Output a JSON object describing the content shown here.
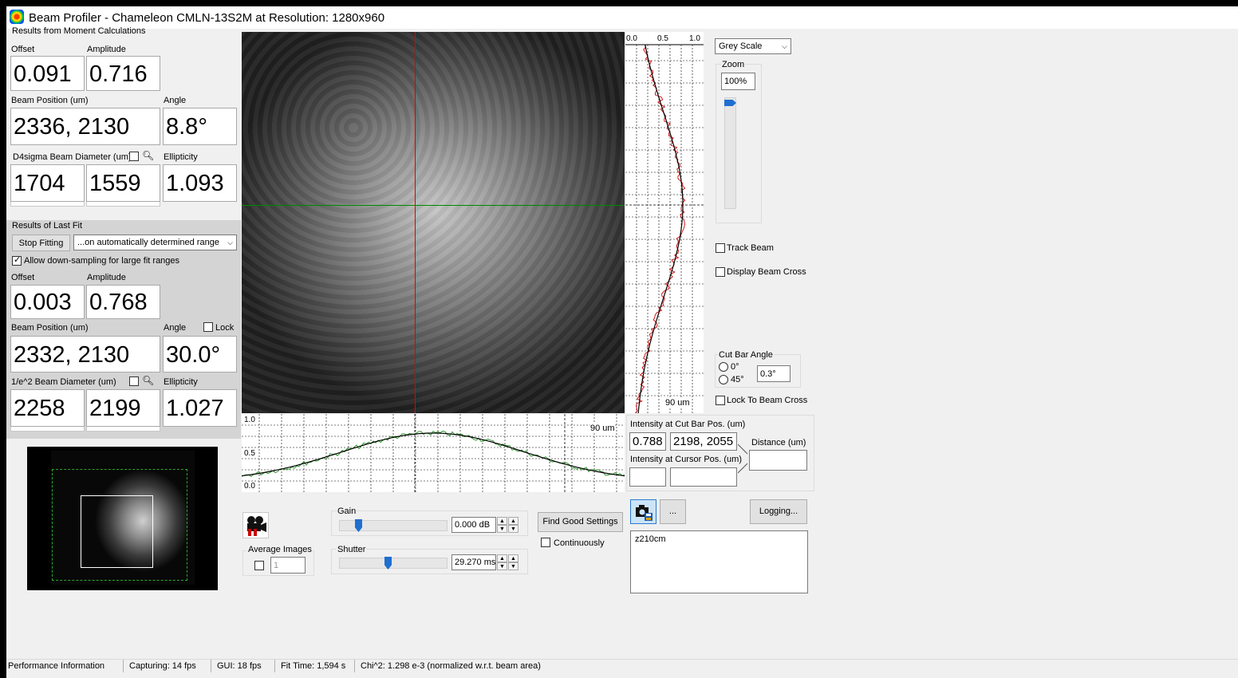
{
  "window": {
    "title": "Beam Profiler - Chameleon CMLN-13S2M at Resolution: 1280x960"
  },
  "moment": {
    "section_title": "Results from Moment Calculations",
    "offset_label": "Offset",
    "offset_value": "0.091",
    "amplitude_label": "Amplitude",
    "amplitude_value": "0.716",
    "position_label": "Beam Position (um)",
    "position_value": "2336, 2130",
    "angle_label": "Angle",
    "angle_value": "8.8°",
    "diameter_label": "D4sigma Beam Diameter (um)",
    "diameter_x": "1704",
    "diameter_y": "1559",
    "ellipticity_label": "Ellipticity",
    "ellipticity_value": "1.093"
  },
  "fit": {
    "section_title": "Results of Last Fit",
    "stop_button": "Stop Fitting",
    "range_select": "...on automatically determined range",
    "downsampling_label": "Allow down-sampling for large fit ranges",
    "downsampling_checked": true,
    "offset_label": "Offset",
    "offset_value": "0.003",
    "amplitude_label": "Amplitude",
    "amplitude_value": "0.768",
    "position_label": "Beam Position (um)",
    "position_value": "2332, 2130",
    "angle_label": "Angle",
    "angle_value": "30.0°",
    "lock_label": "Lock",
    "diameter_label": "1/e^2 Beam Diameter (um)",
    "diameter_x": "2258",
    "diameter_y": "2199",
    "ellipticity_label": "Ellipticity",
    "ellipticity_value": "1.027"
  },
  "vertical_profile": {
    "tick_labels": [
      "0.0",
      "0.5",
      "1.0"
    ],
    "scale_label": "90 um"
  },
  "horizontal_profile": {
    "tick_labels": [
      "1.0",
      "0.5",
      "0.0"
    ],
    "scale_label": "90 um"
  },
  "right_panel": {
    "colormap_select": "Grey Scale",
    "zoom_label": "Zoom",
    "zoom_value": "100%",
    "track_beam_label": "Track Beam",
    "display_cross_label": "Display Beam Cross",
    "cut_bar_angle_label": "Cut Bar Angle",
    "angle_0_label": "0°",
    "angle_45_label": "45°",
    "cut_bar_angle_value": "0.3°",
    "lock_cross_label": "Lock To Beam Cross"
  },
  "intensity": {
    "cut_bar_label": "Intensity at Cut Bar Pos. (um)",
    "cut_bar_intensity": "0.788",
    "cut_bar_position": "2198, 2055",
    "cursor_label": "Intensity at Cursor Pos. (um)",
    "cursor_intensity": "",
    "cursor_position": "",
    "distance_label": "Distance (um)",
    "distance_value": ""
  },
  "controls": {
    "average_images_label": "Average Images",
    "average_images_value": "1",
    "gain_label": "Gain",
    "gain_value": "0.000 dB",
    "gain_level": 0.15,
    "shutter_label": "Shutter",
    "shutter_value": "29.270 ms",
    "shutter_level": 0.45,
    "find_settings_button": "Find Good Settings",
    "continuously_label": "Continuously",
    "more_button": "...",
    "logging_button": "Logging...",
    "notes_text": "z210cm"
  },
  "status": {
    "performance": "Performance Information",
    "capturing": "Capturing: 14 fps",
    "gui": "GUI: 18 fps",
    "fit_time": "Fit Time: 1,594 s",
    "chi": "Chi^2:  1.298 e-3  (normalized w.r.t. beam area)"
  },
  "colors": {
    "crosshair_vertical": "#e00000",
    "crosshair_horizontal": "#008a00",
    "fit_curve": "#000000",
    "profile_vertical": "#d00000",
    "profile_horizontal": "#1e8f1e",
    "slider_thumb": "#1e6fd0"
  }
}
